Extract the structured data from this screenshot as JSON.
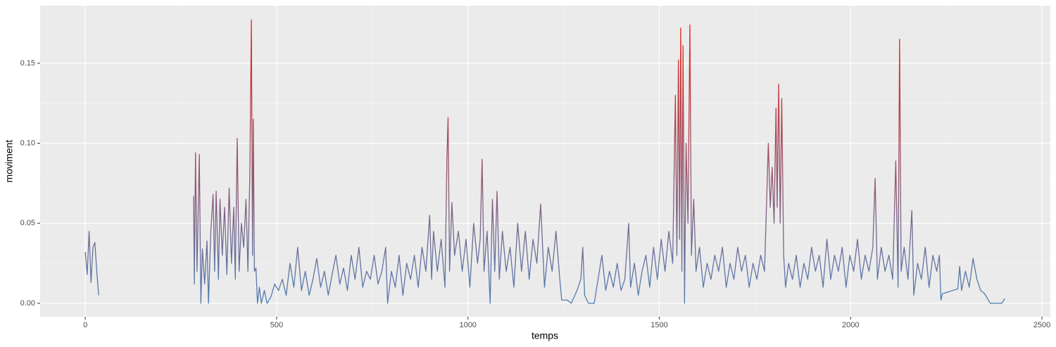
{
  "chart_data": {
    "type": "line",
    "x_label": "temps",
    "y_label": "moviment",
    "x": [
      0,
      5,
      10,
      15,
      20,
      25,
      30,
      35,
      160,
      283,
      285,
      288,
      292,
      298,
      302,
      306,
      312,
      318,
      322,
      328,
      334,
      338,
      342,
      348,
      352,
      358,
      364,
      370,
      376,
      382,
      388,
      392,
      397,
      402,
      408,
      414,
      420,
      425,
      430,
      434,
      437,
      439,
      442,
      446,
      450,
      455,
      460,
      468,
      475,
      485,
      495,
      505,
      515,
      525,
      535,
      545,
      555,
      565,
      575,
      585,
      595,
      605,
      615,
      625,
      635,
      645,
      655,
      665,
      675,
      685,
      695,
      705,
      715,
      725,
      735,
      745,
      755,
      765,
      775,
      785,
      790,
      800,
      810,
      820,
      830,
      840,
      850,
      860,
      870,
      880,
      890,
      900,
      905,
      910,
      920,
      930,
      940,
      945,
      948,
      952,
      958,
      965,
      975,
      985,
      995,
      1005,
      1015,
      1025,
      1032,
      1037,
      1042,
      1050,
      1058,
      1064,
      1070,
      1076,
      1082,
      1090,
      1100,
      1110,
      1120,
      1130,
      1140,
      1150,
      1160,
      1170,
      1180,
      1190,
      1200,
      1210,
      1220,
      1230,
      1240,
      1245,
      1260,
      1270,
      1285,
      1295,
      1300,
      1305,
      1315,
      1330,
      1340,
      1350,
      1360,
      1370,
      1380,
      1390,
      1400,
      1410,
      1420,
      1425,
      1435,
      1445,
      1455,
      1465,
      1475,
      1485,
      1495,
      1505,
      1515,
      1525,
      1535,
      1542,
      1546,
      1550,
      1553,
      1556,
      1559,
      1562,
      1566,
      1570,
      1575,
      1580,
      1584,
      1590,
      1596,
      1605,
      1615,
      1625,
      1635,
      1645,
      1655,
      1665,
      1675,
      1685,
      1695,
      1705,
      1715,
      1725,
      1735,
      1745,
      1755,
      1765,
      1775,
      1785,
      1790,
      1795,
      1800,
      1805,
      1808,
      1812,
      1816,
      1820,
      1825,
      1830,
      1838,
      1848,
      1858,
      1868,
      1878,
      1888,
      1898,
      1908,
      1918,
      1928,
      1938,
      1948,
      1958,
      1968,
      1978,
      1988,
      1998,
      2008,
      2018,
      2028,
      2038,
      2048,
      2058,
      2064,
      2070,
      2080,
      2090,
      2100,
      2110,
      2118,
      2124,
      2128,
      2132,
      2140,
      2150,
      2160,
      2165,
      2175,
      2185,
      2195,
      2205,
      2215,
      2225,
      2232,
      2236,
      2240,
      2280,
      2285,
      2290,
      2300,
      2310,
      2320,
      2330,
      2340,
      2350,
      2365,
      2395,
      2403
    ],
    "values": [
      0.032,
      0.018,
      0.045,
      0.013,
      0.035,
      0.038,
      0.02,
      0.005,
      null,
      0.067,
      0.012,
      0.094,
      0.02,
      0.093,
      0.0,
      0.034,
      0.012,
      0.039,
      0.0,
      0.045,
      0.068,
      0.02,
      0.07,
      0.015,
      0.065,
      0.03,
      0.06,
      0.018,
      0.072,
      0.025,
      0.06,
      0.015,
      0.103,
      0.02,
      0.05,
      0.035,
      0.065,
      0.02,
      0.08,
      0.177,
      0.03,
      0.115,
      0.02,
      0.022,
      0.0,
      0.01,
      0.0,
      0.008,
      0.0,
      0.004,
      0.012,
      0.008,
      0.015,
      0.005,
      0.025,
      0.01,
      0.035,
      0.008,
      0.02,
      0.005,
      0.015,
      0.028,
      0.01,
      0.02,
      0.005,
      0.018,
      0.03,
      0.012,
      0.022,
      0.008,
      0.03,
      0.015,
      0.035,
      0.01,
      0.02,
      0.015,
      0.03,
      0.012,
      0.02,
      0.035,
      0.0,
      0.02,
      0.01,
      0.03,
      0.005,
      0.025,
      0.015,
      0.03,
      0.01,
      0.035,
      0.02,
      0.055,
      0.015,
      0.045,
      0.02,
      0.04,
      0.01,
      0.09,
      0.116,
      0.02,
      0.063,
      0.03,
      0.045,
      0.02,
      0.04,
      0.01,
      0.05,
      0.025,
      0.04,
      0.09,
      0.02,
      0.045,
      0.0,
      0.065,
      0.02,
      0.07,
      0.015,
      0.045,
      0.02,
      0.035,
      0.01,
      0.05,
      0.02,
      0.045,
      0.015,
      0.04,
      0.025,
      0.062,
      0.01,
      0.035,
      0.02,
      0.045,
      0.015,
      0.002,
      0.002,
      0.0,
      0.008,
      0.015,
      0.035,
      0.005,
      0.0,
      0.0,
      0.015,
      0.03,
      0.008,
      0.02,
      0.01,
      0.025,
      0.008,
      0.015,
      0.05,
      0.01,
      0.025,
      0.005,
      0.02,
      0.03,
      0.01,
      0.035,
      0.015,
      0.04,
      0.02,
      0.045,
      0.025,
      0.13,
      0.03,
      0.152,
      0.04,
      0.172,
      0.02,
      0.161,
      0.0,
      0.1,
      0.05,
      0.174,
      0.03,
      0.065,
      0.02,
      0.035,
      0.01,
      0.025,
      0.015,
      0.03,
      0.02,
      0.035,
      0.01,
      0.025,
      0.015,
      0.035,
      0.02,
      0.03,
      0.01,
      0.025,
      0.015,
      0.03,
      0.02,
      0.1,
      0.06,
      0.085,
      0.05,
      0.122,
      0.06,
      0.137,
      0.05,
      0.128,
      0.03,
      0.01,
      0.025,
      0.015,
      0.03,
      0.01,
      0.025,
      0.015,
      0.035,
      0.02,
      0.03,
      0.01,
      0.04,
      0.015,
      0.03,
      0.02,
      0.035,
      0.01,
      0.03,
      0.02,
      0.04,
      0.015,
      0.03,
      0.02,
      0.035,
      0.078,
      0.015,
      0.035,
      0.02,
      0.03,
      0.015,
      0.089,
      0.01,
      0.165,
      0.02,
      0.035,
      0.015,
      0.058,
      0.005,
      0.025,
      0.015,
      0.035,
      0.01,
      0.03,
      0.02,
      0.03,
      0.002,
      0.006,
      0.009,
      0.023,
      0.008,
      0.02,
      0.01,
      0.028,
      0.015,
      0.008,
      0.006,
      0.0,
      0.0,
      0.003
    ],
    "color_low": "#4e7fb5",
    "color_high": "#e8261a",
    "xlim": [
      -118,
      2522
    ],
    "xticks": [
      0,
      500,
      1000,
      1500,
      2000,
      2500
    ],
    "ylim": [
      -0.0084,
      0.186
    ],
    "yticks": [
      {
        "value": 0,
        "label": "0.00"
      },
      {
        "value": 0.05,
        "label": "0.05"
      },
      {
        "value": 0.1,
        "label": "0.10"
      },
      {
        "value": 0.15,
        "label": "0.15"
      }
    ],
    "grid": true
  }
}
